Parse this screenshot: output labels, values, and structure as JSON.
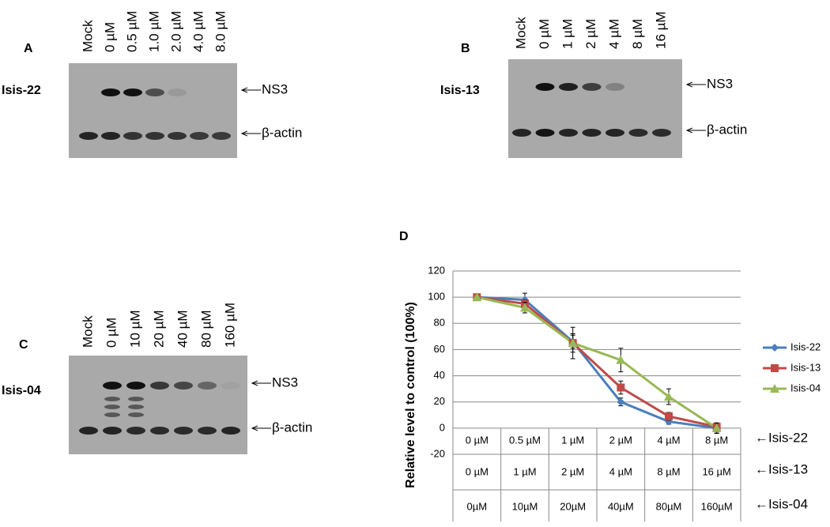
{
  "panels": [
    {
      "letter": "A",
      "name": "Isis-22",
      "lanes": [
        "Mock",
        "0 µM",
        "0.5 µM",
        "1.0 µM",
        "2.0 µM",
        "4.0 µM",
        "8.0 µM"
      ],
      "bands": [
        "NS3",
        "β-actin"
      ]
    },
    {
      "letter": "B",
      "name": "Isis-13",
      "lanes": [
        "Mock",
        "0 µM",
        "1 µM",
        "2 µM",
        "4 µM",
        "8 µM",
        "16 µM"
      ],
      "bands": [
        "NS3",
        "β-actin"
      ]
    },
    {
      "letter": "C",
      "name": "Isis-04",
      "lanes": [
        "Mock",
        "0 µM",
        "10 µM",
        "20 µM",
        "40 µM",
        "80 µM",
        "160 µM"
      ],
      "bands": [
        "NS3",
        "β-actin"
      ]
    }
  ],
  "chart_data": {
    "type": "line",
    "letter": "D",
    "y_label": "Relative level to control (100%)",
    "categories": [
      "0 µM",
      "0.5 µM",
      "1 µM",
      "2 µM",
      "4 µM",
      "8 µM"
    ],
    "category_rows": [
      {
        "label": "←Isis-22",
        "categories": [
          "0 µM",
          "0.5 µM",
          "1 µM",
          "2 µM",
          "4 µM",
          "8 µM"
        ]
      },
      {
        "label": "←Isis-13",
        "categories": [
          "0 µM",
          "1 µM",
          "2 µM",
          "4 µM",
          "8 µM",
          "16 µM"
        ]
      },
      {
        "label": "←Isis-04",
        "categories": [
          "0µM",
          "10µM",
          "20µM",
          "40µM",
          "80µM",
          "160µM"
        ]
      }
    ],
    "series": [
      {
        "name": "Isis-22",
        "color": "#4a7ebb",
        "values": [
          100,
          98,
          66,
          20,
          5,
          0
        ],
        "errors": [
          0,
          5,
          5,
          3,
          2,
          3
        ]
      },
      {
        "name": "Isis-13",
        "color": "#be4b48",
        "values": [
          100,
          95,
          65,
          31,
          9,
          1
        ],
        "errors": [
          0,
          3,
          7,
          5,
          3,
          3
        ]
      },
      {
        "name": "Isis-04",
        "color": "#98b954",
        "values": [
          100,
          92,
          65,
          52,
          24,
          0
        ],
        "errors": [
          0,
          4,
          12,
          9,
          6,
          4
        ]
      }
    ],
    "ylim": [
      -20,
      120
    ],
    "yticks": [
      -20,
      0,
      20,
      40,
      60,
      80,
      100,
      120
    ],
    "grid": true
  }
}
